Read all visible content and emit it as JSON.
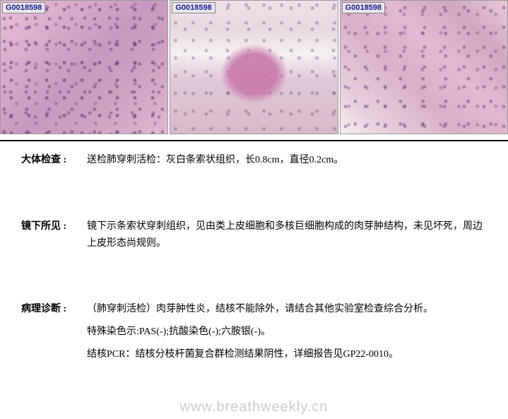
{
  "images": {
    "label1": "G0018598",
    "label2": "G0018598",
    "label3": "G0018598"
  },
  "report": {
    "gross": {
      "label": "大体检查 :",
      "content": "送检肺穿刺活检：灰白条索状组织，长0.8cm，直径0.2cm。"
    },
    "microscopic": {
      "label": "镜下所见 :",
      "content": "镜下示条索状穿刺组织，见由类上皮细胞和多核巨细胞构成的肉芽肿结构，未见坏死，周边上皮形态尚规则。"
    },
    "diagnosis": {
      "label": "病理诊断 :",
      "line1": "（肺穿刺活检）肉芽肿性炎，结核不能除外，请结合其他实验室检查综合分析。",
      "line2": "特殊染色示:PAS(-);抗酸染色(-);六胺银(-)。",
      "line3": "结核PCR：结核分枝杆菌复合群检测结果阴性，详细报告见GP22-0010。"
    }
  },
  "watermark": "www.breathweekly.cn",
  "colors": {
    "labelBg": "#e8e8f0",
    "labelText": "#1a1a8a",
    "divider": "#000000",
    "watermark": "#cccccc"
  }
}
